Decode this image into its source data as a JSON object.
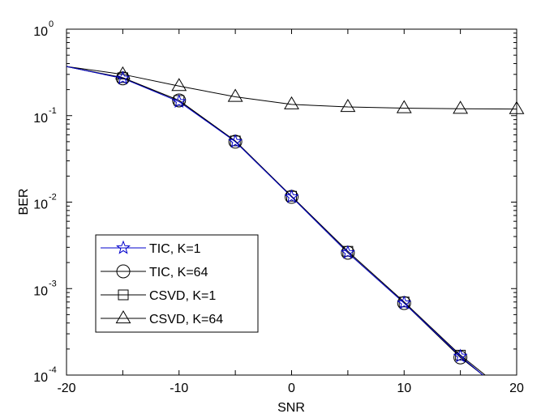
{
  "chart_data": {
    "type": "line",
    "title": "",
    "xlabel": "SNR",
    "ylabel": "BER",
    "y_scale": "log",
    "xlim": [
      -20,
      20
    ],
    "ylim": [
      0.0001,
      1
    ],
    "x_ticks": [
      {
        "value": -20,
        "label": "-20"
      },
      {
        "value": -10,
        "label": "-10"
      },
      {
        "value": 0,
        "label": "0"
      },
      {
        "value": 10,
        "label": "10"
      },
      {
        "value": 20,
        "label": "20"
      }
    ],
    "y_ticks": [
      {
        "value": 1,
        "base": "10",
        "exp": "0"
      },
      {
        "value": 0.1,
        "base": "10",
        "exp": "-1"
      },
      {
        "value": 0.01,
        "base": "10",
        "exp": "-2"
      },
      {
        "value": 0.001,
        "base": "10",
        "exp": "-3"
      },
      {
        "value": 0.0001,
        "base": "10",
        "exp": "-4"
      }
    ],
    "grid": false,
    "legend_position": "bottom-left",
    "series": [
      {
        "name": "TIC, K=1",
        "color": "#0000cc",
        "marker": "star",
        "x": [
          -20,
          -15,
          -10,
          -5,
          0,
          5,
          10,
          15,
          17
        ],
        "y": [
          0.37,
          0.27,
          0.145,
          0.05,
          0.0115,
          0.0026,
          0.00068,
          0.000165,
          0.0001
        ]
      },
      {
        "name": "TIC, K=64",
        "color": "#000000",
        "marker": "circle",
        "x": [
          -20,
          -15,
          -10,
          -5,
          0,
          5,
          10,
          15,
          17
        ],
        "y": [
          0.37,
          0.27,
          0.15,
          0.05,
          0.0115,
          0.0026,
          0.00068,
          0.00016,
          0.0001
        ]
      },
      {
        "name": "CSVD, K=1",
        "color": "#000000",
        "marker": "square",
        "x": [
          -20,
          -15,
          -10,
          -5,
          0,
          5,
          10,
          15,
          17.2
        ],
        "y": [
          0.37,
          0.275,
          0.15,
          0.051,
          0.0117,
          0.0027,
          0.0007,
          0.00017,
          0.0001
        ]
      },
      {
        "name": "CSVD, K=64",
        "color": "#000000",
        "marker": "triangle",
        "x": [
          -20,
          -15,
          -10,
          -5,
          0,
          5,
          10,
          15,
          20
        ],
        "y": [
          0.37,
          0.3,
          0.22,
          0.165,
          0.135,
          0.126,
          0.122,
          0.12,
          0.119
        ]
      }
    ]
  }
}
